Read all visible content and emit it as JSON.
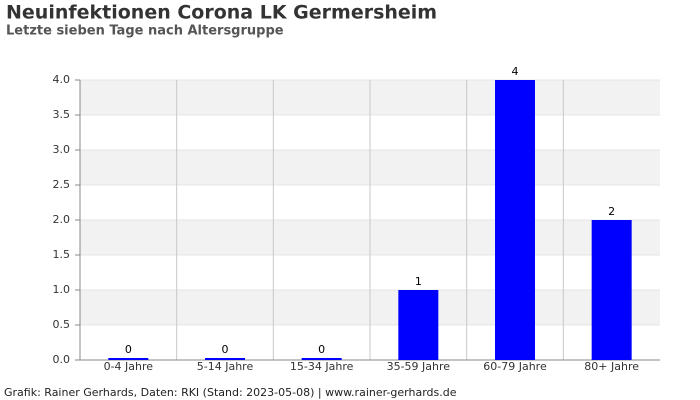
{
  "chart_data": {
    "type": "bar",
    "title": "Neuinfektionen Corona LK Germersheim",
    "subtitle": "Letzte sieben Tage nach Altersgruppe",
    "footer": "Grafik: Rainer Gerhards, Daten: RKI (Stand: 2023-05-08) | www.rainer-gerhards.de",
    "categories": [
      "0-4 Jahre",
      "5-14 Jahre",
      "15-34 Jahre",
      "35-59 Jahre",
      "60-79 Jahre",
      "80+ Jahre"
    ],
    "values": [
      0,
      0,
      0,
      1,
      4,
      2
    ],
    "color": "#0000ff",
    "ylim": [
      0,
      4
    ],
    "yticks": [
      {
        "value": 0,
        "label": "0.0"
      },
      0.5,
      {
        "value": 1,
        "label": "1.0"
      },
      1.5,
      {
        "value": 2,
        "label": "2.0"
      },
      2.5,
      {
        "value": 3,
        "label": "3.0"
      },
      3.5,
      {
        "value": 4,
        "label": "4.0"
      }
    ],
    "grid": true
  }
}
